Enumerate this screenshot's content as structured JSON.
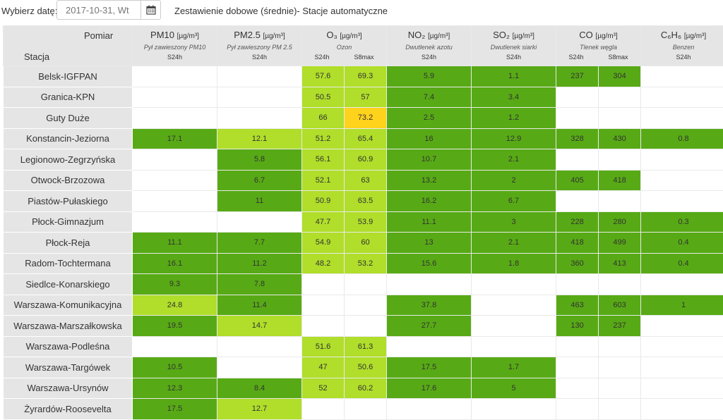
{
  "toolbar": {
    "date_label": "Wybierz datę:",
    "date_value": "2017-10-31, Wt",
    "calendar_icon": "calendar-icon",
    "report_title": "Zestawienie dobowe (średnie)- Stacje automatyczne"
  },
  "table": {
    "header": {
      "pomiar": "Pomiar",
      "stacja": "Stacja",
      "pollutants": [
        {
          "name": "PM10",
          "unit": "[µg/m³]",
          "desc": "Pył zawieszony PM10",
          "agg": [
            "S24h"
          ]
        },
        {
          "name": "PM2.5",
          "unit": "[µg/m³]",
          "desc": "Pył zawieszony PM 2.5",
          "agg": [
            "S24h"
          ]
        },
        {
          "name": "O₃",
          "unit": "[µg/m³]",
          "desc": "Ozon",
          "agg": [
            "S24h",
            "S8max"
          ]
        },
        {
          "name": "NO₂",
          "unit": "[µg/m³]",
          "desc": "Dwutlenek azotu",
          "agg": [
            "S24h"
          ]
        },
        {
          "name": "SO₂",
          "unit": "[µg/m³]",
          "desc": "Dwutlenek siarki",
          "agg": [
            "S24h"
          ]
        },
        {
          "name": "CO",
          "unit": "[µg/m³]",
          "desc": "Tlenek węgla",
          "agg": [
            "S24h",
            "S8max"
          ]
        },
        {
          "name": "C₆H₆",
          "unit": "[µg/m³]",
          "desc": "Benzen",
          "agg": [
            "S24h"
          ]
        }
      ]
    },
    "legend_colors": {
      "dg": "#57aa15",
      "lg": "#b0de2a",
      "y": "#ffd21c",
      "e": "#ffffff"
    },
    "rows": [
      {
        "station": "Belsk-IGFPAN",
        "cells": [
          [
            "",
            "e"
          ],
          [
            "",
            "e"
          ],
          [
            "57.6",
            "lg"
          ],
          [
            "69.3",
            "lg"
          ],
          [
            "5.9",
            "dg"
          ],
          [
            "1.1",
            "dg"
          ],
          [
            "237",
            "dg"
          ],
          [
            "304",
            "dg"
          ],
          [
            "",
            "e"
          ]
        ]
      },
      {
        "station": "Granica-KPN",
        "cells": [
          [
            "",
            "e"
          ],
          [
            "",
            "e"
          ],
          [
            "50.5",
            "lg"
          ],
          [
            "57",
            "lg"
          ],
          [
            "7.4",
            "dg"
          ],
          [
            "3.4",
            "dg"
          ],
          [
            "",
            "e"
          ],
          [
            "",
            "e"
          ],
          [
            "",
            "e"
          ]
        ]
      },
      {
        "station": "Guty Duże",
        "cells": [
          [
            "",
            "e"
          ],
          [
            "",
            "e"
          ],
          [
            "66",
            "lg"
          ],
          [
            "73.2",
            "y"
          ],
          [
            "2.5",
            "dg"
          ],
          [
            "1.2",
            "dg"
          ],
          [
            "",
            "e"
          ],
          [
            "",
            "e"
          ],
          [
            "",
            "e"
          ]
        ]
      },
      {
        "station": "Konstancin-Jeziorna",
        "cells": [
          [
            "17.1",
            "dg"
          ],
          [
            "12.1",
            "lg"
          ],
          [
            "51.2",
            "lg"
          ],
          [
            "65.4",
            "lg"
          ],
          [
            "16",
            "dg"
          ],
          [
            "12.9",
            "dg"
          ],
          [
            "328",
            "dg"
          ],
          [
            "430",
            "dg"
          ],
          [
            "0.8",
            "dg"
          ]
        ]
      },
      {
        "station": "Legionowo-Zegrzyńska",
        "cells": [
          [
            "",
            "e"
          ],
          [
            "5.8",
            "dg"
          ],
          [
            "56.1",
            "lg"
          ],
          [
            "60.9",
            "lg"
          ],
          [
            "10.7",
            "dg"
          ],
          [
            "2.1",
            "dg"
          ],
          [
            "",
            "e"
          ],
          [
            "",
            "e"
          ],
          [
            "",
            "e"
          ]
        ]
      },
      {
        "station": "Otwock-Brzozowa",
        "cells": [
          [
            "",
            "e"
          ],
          [
            "6.7",
            "dg"
          ],
          [
            "52.1",
            "lg"
          ],
          [
            "63",
            "lg"
          ],
          [
            "13.2",
            "dg"
          ],
          [
            "2",
            "dg"
          ],
          [
            "405",
            "dg"
          ],
          [
            "418",
            "dg"
          ],
          [
            "",
            "e"
          ]
        ]
      },
      {
        "station": "Piastów-Pułaskiego",
        "cells": [
          [
            "",
            "e"
          ],
          [
            "11",
            "dg"
          ],
          [
            "50.9",
            "lg"
          ],
          [
            "63.5",
            "lg"
          ],
          [
            "16.2",
            "dg"
          ],
          [
            "6.7",
            "dg"
          ],
          [
            "",
            "e"
          ],
          [
            "",
            "e"
          ],
          [
            "",
            "e"
          ]
        ]
      },
      {
        "station": "Płock-Gimnazjum",
        "cells": [
          [
            "",
            "e"
          ],
          [
            "",
            "e"
          ],
          [
            "47.7",
            "lg"
          ],
          [
            "53.9",
            "lg"
          ],
          [
            "11.1",
            "dg"
          ],
          [
            "3",
            "dg"
          ],
          [
            "228",
            "dg"
          ],
          [
            "280",
            "dg"
          ],
          [
            "0.3",
            "dg"
          ]
        ]
      },
      {
        "station": "Płock-Reja",
        "cells": [
          [
            "11.1",
            "dg"
          ],
          [
            "7.7",
            "dg"
          ],
          [
            "54.9",
            "lg"
          ],
          [
            "60",
            "lg"
          ],
          [
            "13",
            "dg"
          ],
          [
            "2.1",
            "dg"
          ],
          [
            "418",
            "dg"
          ],
          [
            "499",
            "dg"
          ],
          [
            "0.4",
            "dg"
          ]
        ]
      },
      {
        "station": "Radom-Tochtermana",
        "cells": [
          [
            "16.1",
            "dg"
          ],
          [
            "11.2",
            "dg"
          ],
          [
            "48.2",
            "lg"
          ],
          [
            "53.2",
            "lg"
          ],
          [
            "15.6",
            "dg"
          ],
          [
            "1.8",
            "dg"
          ],
          [
            "360",
            "dg"
          ],
          [
            "413",
            "dg"
          ],
          [
            "0.4",
            "dg"
          ]
        ]
      },
      {
        "station": "Siedlce-Konarskiego",
        "cells": [
          [
            "9.3",
            "dg"
          ],
          [
            "7.8",
            "dg"
          ],
          [
            "",
            "e"
          ],
          [
            "",
            "e"
          ],
          [
            "",
            "e"
          ],
          [
            "",
            "e"
          ],
          [
            "",
            "e"
          ],
          [
            "",
            "e"
          ],
          [
            "",
            "e"
          ]
        ]
      },
      {
        "station": "Warszawa-Komunikacyjna",
        "cells": [
          [
            "24.8",
            "lg"
          ],
          [
            "11.4",
            "dg"
          ],
          [
            "",
            "e"
          ],
          [
            "",
            "e"
          ],
          [
            "37.8",
            "dg"
          ],
          [
            "",
            "e"
          ],
          [
            "463",
            "dg"
          ],
          [
            "603",
            "dg"
          ],
          [
            "1",
            "dg"
          ]
        ]
      },
      {
        "station": "Warszawa-Marszałkowska",
        "cells": [
          [
            "19.5",
            "dg"
          ],
          [
            "14.7",
            "lg"
          ],
          [
            "",
            "e"
          ],
          [
            "",
            "e"
          ],
          [
            "27.7",
            "dg"
          ],
          [
            "",
            "e"
          ],
          [
            "130",
            "dg"
          ],
          [
            "237",
            "dg"
          ],
          [
            "",
            "e"
          ]
        ]
      },
      {
        "station": "Warszawa-Podleśna",
        "cells": [
          [
            "",
            "e"
          ],
          [
            "",
            "e"
          ],
          [
            "51.6",
            "lg"
          ],
          [
            "61.3",
            "lg"
          ],
          [
            "",
            "e"
          ],
          [
            "",
            "e"
          ],
          [
            "",
            "e"
          ],
          [
            "",
            "e"
          ],
          [
            "",
            "e"
          ]
        ]
      },
      {
        "station": "Warszawa-Targówek",
        "cells": [
          [
            "10.5",
            "dg"
          ],
          [
            "",
            "e"
          ],
          [
            "47",
            "lg"
          ],
          [
            "50.6",
            "lg"
          ],
          [
            "17.5",
            "dg"
          ],
          [
            "1.7",
            "dg"
          ],
          [
            "",
            "e"
          ],
          [
            "",
            "e"
          ],
          [
            "",
            "e"
          ]
        ]
      },
      {
        "station": "Warszawa-Ursynów",
        "cells": [
          [
            "12.3",
            "dg"
          ],
          [
            "8.4",
            "dg"
          ],
          [
            "52",
            "lg"
          ],
          [
            "60.2",
            "lg"
          ],
          [
            "17.6",
            "dg"
          ],
          [
            "5",
            "dg"
          ],
          [
            "",
            "e"
          ],
          [
            "",
            "e"
          ],
          [
            "",
            "e"
          ]
        ]
      },
      {
        "station": "Żyrardów-Roosevelta",
        "cells": [
          [
            "17.5",
            "dg"
          ],
          [
            "12.7",
            "lg"
          ],
          [
            "",
            "e"
          ],
          [
            "",
            "e"
          ],
          [
            "",
            "e"
          ],
          [
            "",
            "e"
          ],
          [
            "",
            "e"
          ],
          [
            "",
            "e"
          ],
          [
            "",
            "e"
          ]
        ]
      }
    ]
  }
}
